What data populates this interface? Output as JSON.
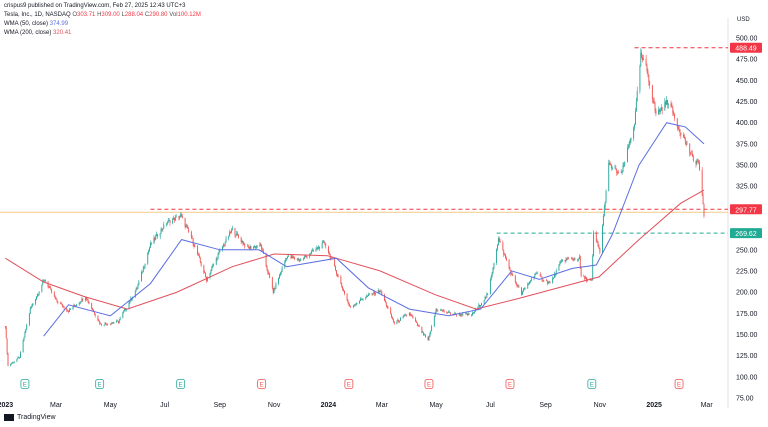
{
  "header": {
    "published": "crispus9 published on TradingView.com, Feb 27, 2025 12:43 UTC+3",
    "symbol": "Tesla, Inc., 1D, NASDAQ",
    "ohlc": {
      "o_label": "O",
      "o": "303.71",
      "h_label": "H",
      "h": "309.00",
      "l_label": "L",
      "l": "288.04",
      "c_label": "C",
      "c": "290.80",
      "vol_label": "Vol",
      "vol": "100.12M"
    },
    "wma50": {
      "label": "WMA (50, close)",
      "value": "374.99"
    },
    "wma200": {
      "label": "WMA (200, close)",
      "value": "320.41"
    }
  },
  "footer": {
    "brand": "TradingView"
  },
  "colors": {
    "up": "#26a69a",
    "down": "#ef5350",
    "wma50": "#5b6ee1",
    "wma200": "#e0505a",
    "resistance": "#f23645",
    "support": "#22ab94",
    "price_badge": "#f23645",
    "support_badge": "#22ab94"
  },
  "chart_data": {
    "type": "candlestick",
    "currency": "USD",
    "y_range": [
      75,
      500
    ],
    "y_ticks": [
      75,
      100,
      125,
      150,
      175,
      200,
      225,
      250,
      275,
      300,
      325,
      350,
      375,
      400,
      425,
      450,
      475,
      500
    ],
    "y_tick_labels": [
      "75.00",
      "100.00",
      "125.00",
      "150.00",
      "175.00",
      "200.00",
      "225.00",
      "250.00",
      "",
      "",
      "325.00",
      "350.00",
      "375.00",
      "400.00",
      "425.00",
      "450.00",
      "475.00",
      "500.00"
    ],
    "x_labels": [
      {
        "label": "2023",
        "date": "2023-01-03",
        "bold": true
      },
      {
        "label": "Mar",
        "date": "2023-03-01"
      },
      {
        "label": "May",
        "date": "2023-05-01"
      },
      {
        "label": "Jul",
        "date": "2023-07-01"
      },
      {
        "label": "Sep",
        "date": "2023-09-01"
      },
      {
        "label": "Nov",
        "date": "2023-11-01"
      },
      {
        "label": "2024",
        "date": "2024-01-01",
        "bold": true
      },
      {
        "label": "Mar",
        "date": "2024-03-01"
      },
      {
        "label": "May",
        "date": "2024-05-01"
      },
      {
        "label": "Jul",
        "date": "2024-07-01"
      },
      {
        "label": "Sep",
        "date": "2024-09-01"
      },
      {
        "label": "Nov",
        "date": "2024-11-01"
      },
      {
        "label": "2025",
        "date": "2025-01-01",
        "bold": true
      },
      {
        "label": "Mar",
        "date": "2025-03-01"
      }
    ],
    "x_range": [
      "2022-12-28",
      "2025-03-25"
    ],
    "price_anchors": [
      [
        "2023-01-03",
        160
      ],
      [
        "2023-01-06",
        113
      ],
      [
        "2023-01-19",
        123
      ],
      [
        "2023-01-31",
        180
      ],
      [
        "2023-02-16",
        215
      ],
      [
        "2023-03-01",
        190
      ],
      [
        "2023-03-15",
        178
      ],
      [
        "2023-04-03",
        195
      ],
      [
        "2023-04-20",
        162
      ],
      [
        "2023-05-10",
        165
      ],
      [
        "2023-05-31",
        205
      ],
      [
        "2023-06-15",
        256
      ],
      [
        "2023-07-03",
        282
      ],
      [
        "2023-07-19",
        290
      ],
      [
        "2023-08-01",
        262
      ],
      [
        "2023-08-17",
        215
      ],
      [
        "2023-09-01",
        248
      ],
      [
        "2023-09-15",
        274
      ],
      [
        "2023-10-02",
        252
      ],
      [
        "2023-10-17",
        255
      ],
      [
        "2023-10-31",
        200
      ],
      [
        "2023-11-15",
        242
      ],
      [
        "2023-12-01",
        238
      ],
      [
        "2023-12-28",
        258
      ],
      [
        "2024-01-12",
        218
      ],
      [
        "2024-01-25",
        182
      ],
      [
        "2024-02-09",
        193
      ],
      [
        "2024-02-28",
        202
      ],
      [
        "2024-03-15",
        163
      ],
      [
        "2024-04-01",
        175
      ],
      [
        "2024-04-22",
        142
      ],
      [
        "2024-05-01",
        180
      ],
      [
        "2024-05-20",
        174
      ],
      [
        "2024-06-10",
        173
      ],
      [
        "2024-06-28",
        197
      ],
      [
        "2024-07-10",
        263
      ],
      [
        "2024-07-25",
        220
      ],
      [
        "2024-08-05",
        198
      ],
      [
        "2024-08-20",
        222
      ],
      [
        "2024-09-06",
        210
      ],
      [
        "2024-09-20",
        238
      ],
      [
        "2024-10-09",
        240
      ],
      [
        "2024-10-11",
        218
      ],
      [
        "2024-10-23",
        213
      ],
      [
        "2024-10-25",
        269
      ],
      [
        "2024-11-01",
        248
      ],
      [
        "2024-11-11",
        350
      ],
      [
        "2024-11-25",
        338
      ],
      [
        "2024-12-10",
        400
      ],
      [
        "2024-12-17",
        479
      ],
      [
        "2024-12-24",
        462
      ],
      [
        "2025-01-03",
        410
      ],
      [
        "2025-01-17",
        426
      ],
      [
        "2025-01-27",
        398
      ],
      [
        "2025-02-05",
        378
      ],
      [
        "2025-02-14",
        355
      ],
      [
        "2025-02-20",
        354
      ],
      [
        "2025-02-26",
        290.8
      ]
    ],
    "wma50_anchors": [
      [
        "2023-02-15",
        148
      ],
      [
        "2023-03-15",
        185
      ],
      [
        "2023-05-01",
        172
      ],
      [
        "2023-06-15",
        210
      ],
      [
        "2023-07-20",
        262
      ],
      [
        "2023-09-01",
        250
      ],
      [
        "2023-10-15",
        250
      ],
      [
        "2023-11-15",
        230
      ],
      [
        "2024-01-10",
        240
      ],
      [
        "2024-02-15",
        205
      ],
      [
        "2024-04-01",
        180
      ],
      [
        "2024-05-15",
        172
      ],
      [
        "2024-06-20",
        180
      ],
      [
        "2024-07-25",
        225
      ],
      [
        "2024-08-25",
        215
      ],
      [
        "2024-10-01",
        228
      ],
      [
        "2024-10-28",
        232
      ],
      [
        "2024-11-15",
        268
      ],
      [
        "2024-12-15",
        350
      ],
      [
        "2025-01-15",
        400
      ],
      [
        "2025-02-05",
        395
      ],
      [
        "2025-02-26",
        375
      ]
    ],
    "wma200_anchors": [
      [
        "2023-01-03",
        240
      ],
      [
        "2023-02-15",
        212
      ],
      [
        "2023-04-01",
        195
      ],
      [
        "2023-05-20",
        180
      ],
      [
        "2023-07-15",
        200
      ],
      [
        "2023-09-15",
        230
      ],
      [
        "2023-11-01",
        245
      ],
      [
        "2023-12-31",
        243
      ],
      [
        "2024-02-28",
        225
      ],
      [
        "2024-04-30",
        197
      ],
      [
        "2024-06-15",
        180
      ],
      [
        "2024-07-31",
        192
      ],
      [
        "2024-09-15",
        205
      ],
      [
        "2024-10-31",
        218
      ],
      [
        "2024-12-15",
        262
      ],
      [
        "2025-01-31",
        305
      ],
      [
        "2025-02-26",
        320.4
      ]
    ],
    "levels": [
      {
        "name": "top",
        "value": 488.49,
        "label": "488.49",
        "style": "resistance",
        "start": "2024-12-10"
      },
      {
        "name": "resistance",
        "value": 297.77,
        "label": "297.77",
        "style": "resistance",
        "start": "2023-06-15"
      },
      {
        "name": "support",
        "value": 269.62,
        "label": "269.62",
        "style": "support",
        "start": "2024-07-08"
      }
    ],
    "last_close": 290.8,
    "earnings_markers": [
      {
        "date": "2023-01-25",
        "letter": "E",
        "type": "up"
      },
      {
        "date": "2023-04-19",
        "letter": "E",
        "type": "up"
      },
      {
        "date": "2023-07-19",
        "letter": "E",
        "type": "up"
      },
      {
        "date": "2023-10-18",
        "letter": "E",
        "type": "down"
      },
      {
        "date": "2024-01-24",
        "letter": "E",
        "type": "down"
      },
      {
        "date": "2024-04-23",
        "letter": "E",
        "type": "down"
      },
      {
        "date": "2024-07-23",
        "letter": "E",
        "type": "down"
      },
      {
        "date": "2024-10-23",
        "letter": "E",
        "type": "up"
      },
      {
        "date": "2025-01-29",
        "letter": "E",
        "type": "down"
      }
    ]
  }
}
